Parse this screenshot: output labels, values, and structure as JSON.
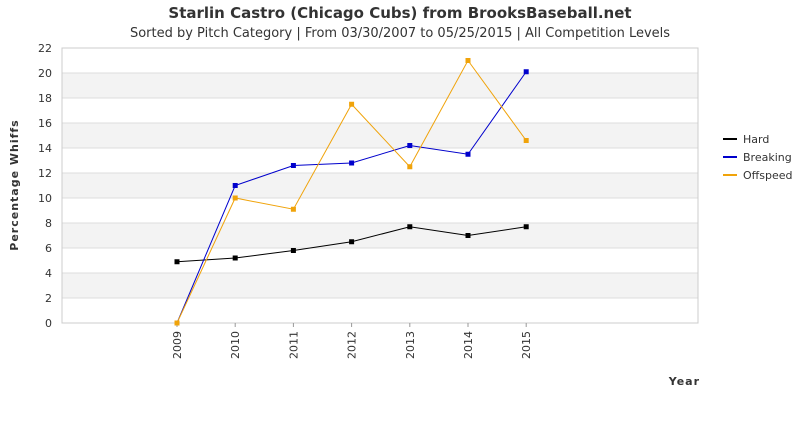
{
  "chart_data": {
    "type": "line",
    "title": "Starlin Castro (Chicago Cubs) from BrooksBaseball.net",
    "subtitle": "Sorted by Pitch Category | From 03/30/2007 to 05/25/2015 | All Competition Levels",
    "xlabel": "Year",
    "ylabel": "Percentage Whiffs",
    "x": [
      "2009",
      "2010",
      "2011",
      "2012",
      "2013",
      "2014",
      "2015"
    ],
    "ylim": [
      0,
      22
    ],
    "yticks": [
      0,
      2,
      4,
      6,
      8,
      10,
      12,
      14,
      16,
      18,
      20,
      22
    ],
    "grid": "horizontal bands",
    "legend_position": "right",
    "series": [
      {
        "name": "Hard",
        "color": "#000000",
        "values": [
          4.9,
          5.2,
          5.8,
          6.5,
          7.7,
          7.0,
          7.7
        ]
      },
      {
        "name": "Breaking",
        "color": "#0000cc",
        "values": [
          0.0,
          11.0,
          12.6,
          12.8,
          14.2,
          13.5,
          20.1
        ]
      },
      {
        "name": "Offspeed",
        "color": "#f0a30a",
        "values": [
          0.0,
          10.0,
          9.1,
          17.5,
          12.5,
          21.0,
          14.6
        ]
      }
    ]
  }
}
